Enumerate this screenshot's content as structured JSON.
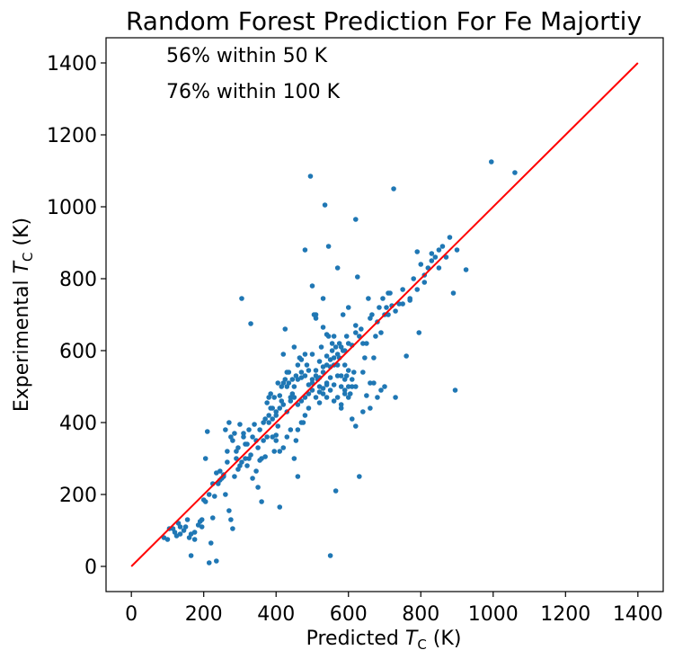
{
  "chart_data": {
    "type": "scatter",
    "title": "Random Forest Prediction For Fe Majortiy",
    "xlabel": {
      "prefix": "Predicted ",
      "symbol": "T",
      "subscript": "C",
      "suffix": " (K)"
    },
    "ylabel": {
      "prefix": "Experimental ",
      "symbol": "T",
      "subscript": "C",
      "suffix": " (K)"
    },
    "xlim": [
      -70,
      1470
    ],
    "ylim": [
      -70,
      1470
    ],
    "xticks": [
      "0",
      "200",
      "400",
      "600",
      "800",
      "1000",
      "1200",
      "1400"
    ],
    "yticks": [
      "0",
      "200",
      "400",
      "600",
      "800",
      "1000",
      "1200",
      "1400"
    ],
    "annotations": [
      "56% within 50 K",
      "76% within 100 K"
    ],
    "grid": false,
    "colors": {
      "points": "#1f77b4",
      "ideal_line": "#ff0000"
    },
    "ideal_line": {
      "x": [
        0,
        1400
      ],
      "y": [
        0,
        1400
      ]
    },
    "points": [
      [
        90,
        80
      ],
      [
        100,
        75
      ],
      [
        105,
        105
      ],
      [
        120,
        95
      ],
      [
        130,
        120
      ],
      [
        135,
        90
      ],
      [
        150,
        110
      ],
      [
        160,
        80
      ],
      [
        165,
        30
      ],
      [
        175,
        95
      ],
      [
        190,
        125
      ],
      [
        195,
        110
      ],
      [
        200,
        185
      ],
      [
        205,
        300
      ],
      [
        210,
        375
      ],
      [
        215,
        10
      ],
      [
        220,
        65
      ],
      [
        225,
        135
      ],
      [
        230,
        195
      ],
      [
        235,
        15
      ],
      [
        240,
        230
      ],
      [
        245,
        265
      ],
      [
        250,
        245
      ],
      [
        255,
        255
      ],
      [
        260,
        200
      ],
      [
        265,
        290
      ],
      [
        270,
        155
      ],
      [
        275,
        130
      ],
      [
        280,
        105
      ],
      [
        285,
        250
      ],
      [
        290,
        320
      ],
      [
        295,
        270
      ],
      [
        300,
        395
      ],
      [
        305,
        745
      ],
      [
        310,
        370
      ],
      [
        315,
        340
      ],
      [
        320,
        280
      ],
      [
        325,
        300
      ],
      [
        330,
        675
      ],
      [
        335,
        245
      ],
      [
        340,
        395
      ],
      [
        345,
        265
      ],
      [
        350,
        220
      ],
      [
        355,
        295
      ],
      [
        360,
        180
      ],
      [
        365,
        350
      ],
      [
        370,
        410
      ],
      [
        375,
        360
      ],
      [
        380,
        420
      ],
      [
        385,
        480
      ],
      [
        390,
        440
      ],
      [
        395,
        320
      ],
      [
        400,
        365
      ],
      [
        405,
        390
      ],
      [
        410,
        165
      ],
      [
        415,
        460
      ],
      [
        420,
        590
      ],
      [
        425,
        660
      ],
      [
        430,
        540
      ],
      [
        435,
        510
      ],
      [
        440,
        470
      ],
      [
        445,
        480
      ],
      [
        450,
        610
      ],
      [
        455,
        350
      ],
      [
        460,
        380
      ],
      [
        465,
        580
      ],
      [
        470,
        525
      ],
      [
        475,
        400
      ],
      [
        480,
        880
      ],
      [
        485,
        560
      ],
      [
        490,
        440
      ],
      [
        495,
        1085
      ],
      [
        500,
        780
      ],
      [
        505,
        700
      ],
      [
        510,
        690
      ],
      [
        515,
        520
      ],
      [
        520,
        455
      ],
      [
        525,
        610
      ],
      [
        530,
        665
      ],
      [
        535,
        1005
      ],
      [
        540,
        510
      ],
      [
        545,
        890
      ],
      [
        550,
        30
      ],
      [
        555,
        600
      ],
      [
        560,
        640
      ],
      [
        565,
        210
      ],
      [
        570,
        830
      ],
      [
        575,
        620
      ],
      [
        580,
        450
      ],
      [
        585,
        700
      ],
      [
        590,
        560
      ],
      [
        595,
        530
      ],
      [
        600,
        720
      ],
      [
        605,
        480
      ],
      [
        610,
        500
      ],
      [
        615,
        540
      ],
      [
        620,
        965
      ],
      [
        625,
        805
      ],
      [
        630,
        250
      ],
      [
        635,
        660
      ],
      [
        640,
        620
      ],
      [
        645,
        580
      ],
      [
        650,
        475
      ],
      [
        655,
        745
      ],
      [
        660,
        690
      ],
      [
        665,
        700
      ],
      [
        670,
        510
      ],
      [
        675,
        640
      ],
      [
        680,
        680
      ],
      [
        685,
        720
      ],
      [
        690,
        490
      ],
      [
        695,
        745
      ],
      [
        700,
        700
      ],
      [
        705,
        720
      ],
      [
        710,
        760
      ],
      [
        715,
        760
      ],
      [
        720,
        725
      ],
      [
        725,
        1050
      ],
      [
        730,
        470
      ],
      [
        740,
        730
      ],
      [
        750,
        770
      ],
      [
        760,
        585
      ],
      [
        770,
        745
      ],
      [
        780,
        800
      ],
      [
        790,
        875
      ],
      [
        795,
        650
      ],
      [
        800,
        840
      ],
      [
        810,
        810
      ],
      [
        820,
        830
      ],
      [
        830,
        870
      ],
      [
        840,
        860
      ],
      [
        850,
        880
      ],
      [
        860,
        890
      ],
      [
        870,
        860
      ],
      [
        880,
        915
      ],
      [
        890,
        760
      ],
      [
        895,
        490
      ],
      [
        900,
        880
      ],
      [
        925,
        825
      ],
      [
        995,
        1125
      ],
      [
        1060,
        1095
      ],
      [
        420,
        330
      ],
      [
        430,
        360
      ],
      [
        440,
        380
      ],
      [
        450,
        300
      ],
      [
        460,
        250
      ],
      [
        470,
        400
      ],
      [
        480,
        420
      ],
      [
        490,
        505
      ],
      [
        500,
        520
      ],
      [
        510,
        545
      ],
      [
        520,
        500
      ],
      [
        530,
        480
      ],
      [
        540,
        560
      ],
      [
        550,
        575
      ],
      [
        560,
        560
      ],
      [
        570,
        590
      ],
      [
        580,
        610
      ],
      [
        590,
        600
      ],
      [
        600,
        620
      ],
      [
        610,
        615
      ],
      [
        620,
        650
      ],
      [
        350,
        330
      ],
      [
        360,
        300
      ],
      [
        370,
        305
      ],
      [
        380,
        470
      ],
      [
        390,
        360
      ],
      [
        400,
        350
      ],
      [
        410,
        320
      ],
      [
        260,
        380
      ],
      [
        270,
        400
      ],
      [
        280,
        350
      ],
      [
        290,
        300
      ],
      [
        300,
        280
      ],
      [
        310,
        360
      ],
      [
        320,
        340
      ],
      [
        330,
        310
      ],
      [
        380,
        400
      ],
      [
        390,
        410
      ],
      [
        400,
        430
      ],
      [
        410,
        475
      ],
      [
        420,
        450
      ],
      [
        430,
        430
      ],
      [
        440,
        460
      ],
      [
        450,
        500
      ],
      [
        460,
        520
      ],
      [
        470,
        540
      ],
      [
        480,
        530
      ],
      [
        490,
        545
      ],
      [
        500,
        510
      ],
      [
        510,
        530
      ],
      [
        520,
        525
      ],
      [
        530,
        540
      ],
      [
        540,
        585
      ],
      [
        550,
        555
      ],
      [
        560,
        580
      ],
      [
        570,
        560
      ],
      [
        580,
        530
      ],
      [
        590,
        490
      ],
      [
        600,
        470
      ],
      [
        610,
        410
      ],
      [
        620,
        390
      ],
      [
        640,
        430
      ],
      [
        660,
        440
      ],
      [
        680,
        470
      ],
      [
        700,
        500
      ],
      [
        520,
        570
      ],
      [
        530,
        555
      ],
      [
        545,
        640
      ],
      [
        555,
        620
      ],
      [
        565,
        610
      ],
      [
        575,
        580
      ],
      [
        585,
        600
      ],
      [
        595,
        640
      ],
      [
        510,
        700
      ],
      [
        530,
        745
      ],
      [
        540,
        645
      ],
      [
        550,
        525
      ],
      [
        560,
        505
      ],
      [
        570,
        530
      ],
      [
        580,
        500
      ],
      [
        590,
        520
      ],
      [
        600,
        545
      ],
      [
        500,
        590
      ],
      [
        480,
        590
      ],
      [
        470,
        575
      ],
      [
        460,
        560
      ],
      [
        455,
        530
      ],
      [
        445,
        520
      ],
      [
        435,
        540
      ],
      [
        425,
        520
      ],
      [
        415,
        500
      ],
      [
        405,
        510
      ],
      [
        395,
        470
      ],
      [
        385,
        440
      ],
      [
        375,
        455
      ],
      [
        365,
        400
      ],
      [
        355,
        380
      ],
      [
        345,
        350
      ],
      [
        335,
        360
      ],
      [
        325,
        380
      ],
      [
        315,
        300
      ],
      [
        305,
        290
      ],
      [
        295,
        330
      ],
      [
        285,
        370
      ],
      [
        275,
        360
      ],
      [
        265,
        320
      ],
      [
        255,
        250
      ],
      [
        245,
        240
      ],
      [
        235,
        260
      ],
      [
        225,
        230
      ],
      [
        215,
        200
      ],
      [
        205,
        180
      ],
      [
        195,
        130
      ],
      [
        185,
        115
      ],
      [
        175,
        75
      ],
      [
        165,
        90
      ],
      [
        155,
        130
      ],
      [
        145,
        100
      ],
      [
        135,
        110
      ],
      [
        125,
        85
      ],
      [
        115,
        105
      ],
      [
        620,
        670
      ],
      [
        630,
        640
      ],
      [
        650,
        620
      ],
      [
        670,
        580
      ],
      [
        690,
        650
      ],
      [
        710,
        700
      ],
      [
        730,
        710
      ],
      [
        750,
        730
      ],
      [
        770,
        740
      ],
      [
        790,
        770
      ],
      [
        810,
        790
      ],
      [
        830,
        850
      ],
      [
        850,
        830
      ],
      [
        540,
        470
      ],
      [
        550,
        490
      ],
      [
        560,
        460
      ],
      [
        570,
        470
      ],
      [
        580,
        440
      ],
      [
        590,
        480
      ],
      [
        600,
        500
      ],
      [
        610,
        520
      ],
      [
        620,
        500
      ],
      [
        640,
        540
      ],
      [
        660,
        510
      ],
      [
        480,
        470
      ],
      [
        490,
        480
      ],
      [
        500,
        490
      ],
      [
        510,
        470
      ],
      [
        520,
        485
      ],
      [
        530,
        495
      ],
      [
        540,
        505
      ],
      [
        460,
        450
      ],
      [
        470,
        460
      ],
      [
        450,
        470
      ],
      [
        430,
        500
      ],
      [
        420,
        510
      ],
      [
        410,
        440
      ],
      [
        400,
        420
      ]
    ]
  }
}
